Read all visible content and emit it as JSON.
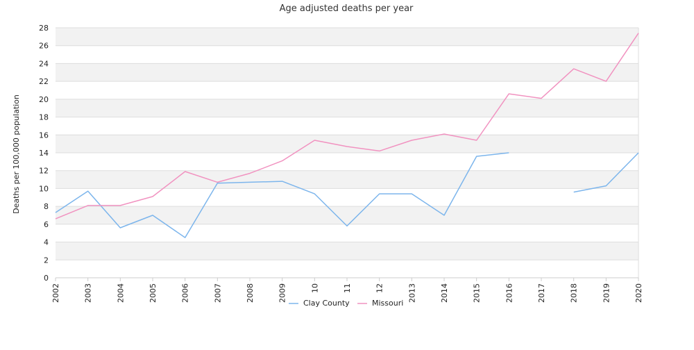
{
  "chart_data": {
    "type": "line",
    "title": "Age adjusted deaths per year",
    "xlabel": "",
    "ylabel": "Deaths per 100,000 population",
    "categories": [
      "2002",
      "2003",
      "2004",
      "2005",
      "2006",
      "2007",
      "2008",
      "2009",
      "10",
      "11",
      "12",
      "2013",
      "2014",
      "2015",
      "2016",
      "2017",
      "2018",
      "2019",
      "2020"
    ],
    "ylim": [
      0,
      28
    ],
    "yticks": [
      0,
      2,
      4,
      6,
      8,
      10,
      12,
      14,
      16,
      18,
      20,
      22,
      24,
      26,
      28
    ],
    "grid": "horizontal alternating bands",
    "legend_position": "bottom",
    "series": [
      {
        "name": "Clay County",
        "color": "#7cb5ec",
        "values": [
          7.3,
          9.7,
          5.6,
          7.0,
          4.5,
          10.6,
          10.7,
          10.8,
          9.4,
          5.8,
          9.4,
          9.4,
          7.0,
          13.6,
          14.0,
          null,
          9.6,
          10.3,
          14.0
        ]
      },
      {
        "name": "Missouri",
        "color": "#f192c0",
        "values": [
          6.6,
          8.1,
          8.1,
          9.1,
          11.9,
          10.7,
          11.7,
          13.1,
          15.4,
          14.7,
          14.2,
          15.4,
          16.1,
          15.4,
          20.6,
          20.1,
          23.4,
          22.0,
          27.4
        ]
      }
    ]
  }
}
